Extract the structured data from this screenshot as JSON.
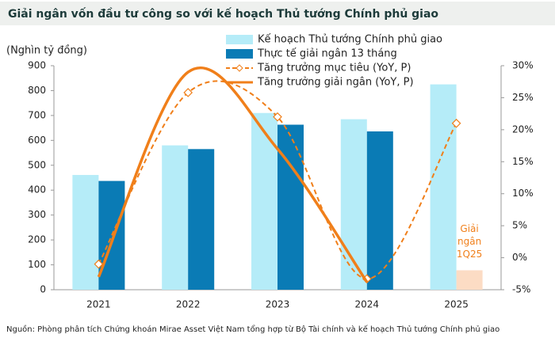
{
  "chart_data": {
    "type": "bar",
    "title": "Giải ngân vốn đầu tư công so với kế hoạch Thủ tướng Chính phủ giao",
    "y_label": "(Nghìn tỷ đồng)",
    "source": "Nguồn: Phòng phân tích Chứng khoán Mirae Asset Việt Nam tổng hợp từ Bộ Tài chính và kế hoạch Thủ tướng Chính phủ giao",
    "categories": [
      "2021",
      "2022",
      "2023",
      "2024",
      "2025"
    ],
    "series": [
      {
        "name": "Kế hoạch Thủ tướng Chính phủ giao",
        "type": "bar",
        "color": "#b5ecf8",
        "values": [
          461,
          580,
          710,
          685,
          825
        ]
      },
      {
        "name": "Thực tế giải ngân 13 tháng",
        "type": "bar",
        "color": "#0a7bb5",
        "values": [
          437,
          565,
          663,
          636,
          null
        ]
      },
      {
        "name": "Giải ngân 1Q25",
        "type": "bar",
        "color": "#fcdcc4",
        "in_legend": false,
        "values": [
          null,
          null,
          null,
          null,
          78
        ]
      },
      {
        "name": "Tăng trưởng mục tiêu (YoY, P)",
        "type": "line",
        "axis": "y2",
        "color": "#f07f1a",
        "dashed": true,
        "marker": "diamond",
        "smooth": true,
        "values": [
          -1,
          25.8,
          22,
          -3.3,
          21
        ]
      },
      {
        "name": "Tăng trưởng giải ngân (YoY, P)",
        "type": "line",
        "axis": "y2",
        "color": "#f07f1a",
        "dashed": false,
        "smooth": true,
        "values": [
          -3,
          29,
          17,
          -3.8,
          null
        ]
      }
    ],
    "ylim": [
      0,
      900
    ],
    "yticks": [
      0,
      100,
      200,
      300,
      400,
      500,
      600,
      700,
      800,
      900
    ],
    "y2lim": [
      -5,
      30
    ],
    "y2ticks": [
      {
        "value": -5,
        "label": "-5%"
      },
      {
        "value": 0,
        "label": "0%"
      },
      {
        "value": 5,
        "label": "5%"
      },
      {
        "value": 10,
        "label": "10%"
      },
      {
        "value": 15,
        "label": "15%"
      },
      {
        "value": 20,
        "label": "20%"
      },
      {
        "value": 25,
        "label": "25%"
      },
      {
        "value": 30,
        "label": "30%"
      }
    ],
    "grid": false
  }
}
